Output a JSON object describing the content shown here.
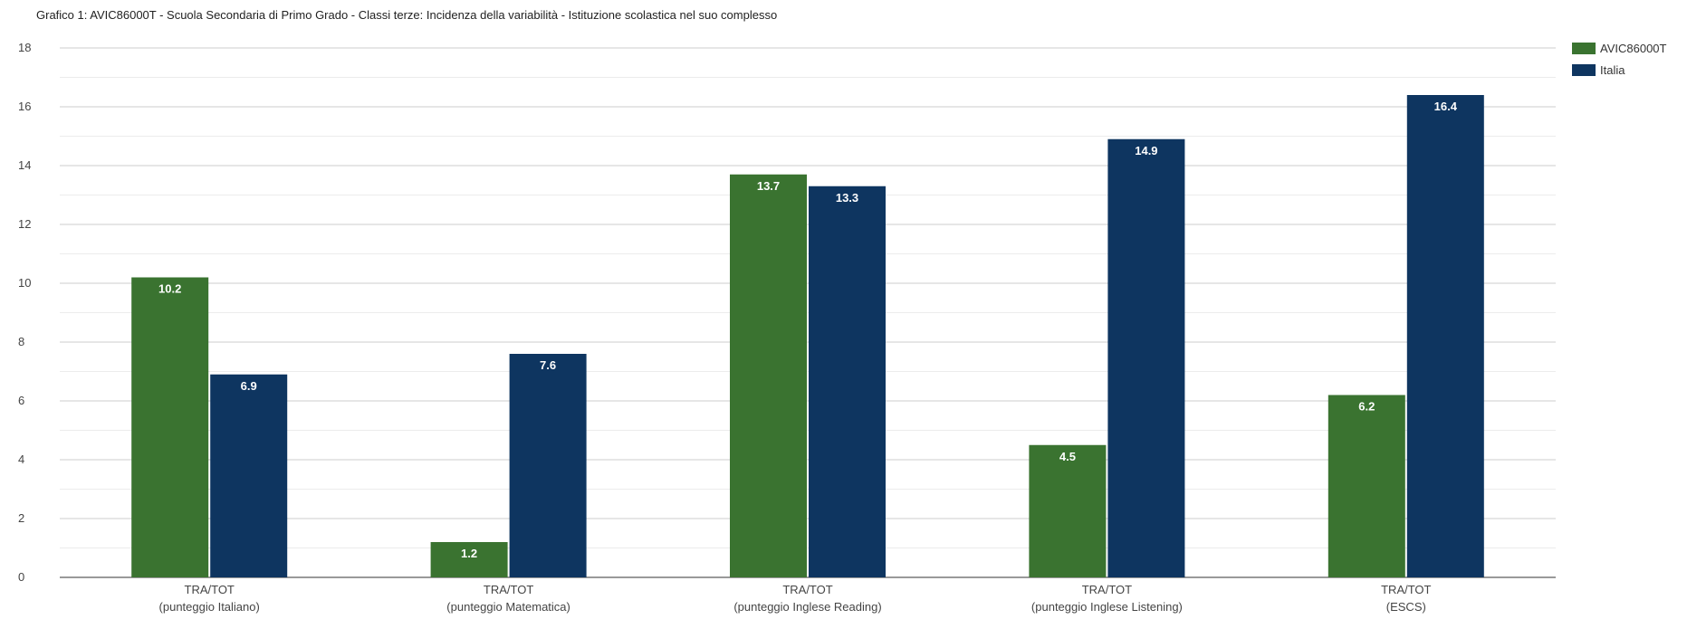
{
  "chart_data": {
    "type": "bar",
    "title": "Grafico 1: AVIC86000T - Scuola Secondaria di Primo Grado - Classi terze: Incidenza della variabilità - Istituzione scolastica nel suo complesso",
    "categories": [
      [
        "TRA/TOT",
        "(punteggio Italiano)"
      ],
      [
        "TRA/TOT",
        "(punteggio Matematica)"
      ],
      [
        "TRA/TOT",
        "(punteggio Inglese Reading)"
      ],
      [
        "TRA/TOT",
        "(punteggio Inglese Listening)"
      ],
      [
        "TRA/TOT",
        "(ESCS)"
      ]
    ],
    "series": [
      {
        "name": "AVIC86000T",
        "color": "#3a7330",
        "values": [
          10.2,
          1.2,
          13.7,
          4.5,
          6.2
        ],
        "labels": [
          "10.2",
          "1.2",
          "13.7",
          "4.5",
          "6.2"
        ]
      },
      {
        "name": "Italia",
        "color": "#0e3560",
        "values": [
          6.9,
          7.6,
          13.3,
          14.9,
          16.4
        ],
        "labels": [
          "6.9",
          "7.6",
          "13.3",
          "14.9",
          "16.4"
        ]
      }
    ],
    "ylim": [
      0,
      18
    ],
    "yticks": [
      0,
      2,
      4,
      6,
      8,
      10,
      12,
      14,
      16,
      18
    ],
    "grid": true,
    "legend": "top-right",
    "xlabel": "",
    "ylabel": ""
  }
}
